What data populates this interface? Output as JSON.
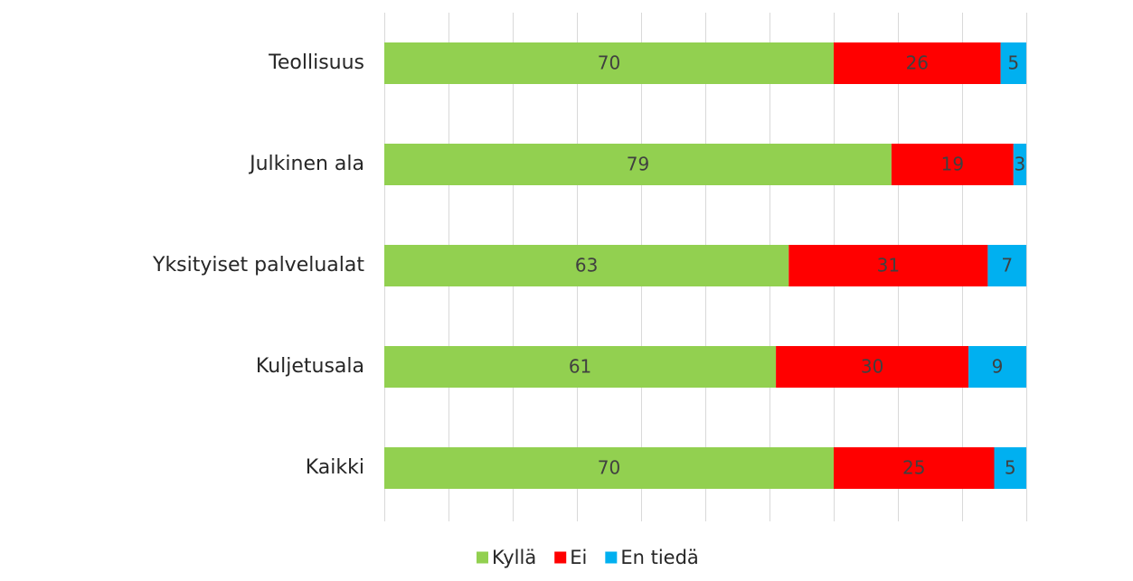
{
  "chart_data": {
    "type": "bar",
    "orientation": "horizontal",
    "stacked": true,
    "categories": [
      "Teollisuus",
      "Julkinen ala",
      "Yksityiset palvelualat",
      "Kuljetusala",
      "Kaikki"
    ],
    "series": [
      {
        "name": "Kyllä",
        "color": "#92d050",
        "values": [
          70,
          79,
          63,
          61,
          70
        ]
      },
      {
        "name": "Ei",
        "color": "#ff0000",
        "values": [
          26,
          19,
          31,
          30,
          25
        ]
      },
      {
        "name": "En tiedä",
        "color": "#00b0f0",
        "values": [
          5,
          3,
          7,
          9,
          5
        ]
      }
    ],
    "xlim": [
      0,
      100
    ],
    "grid": true,
    "legend_position": "bottom",
    "data_labels": true
  }
}
